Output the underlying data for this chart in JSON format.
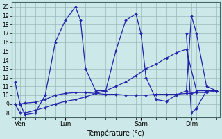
{
  "xlabel": "Température (°c)",
  "bg_color": "#cce8e8",
  "line_color": "#2222aa",
  "grid_color": "#99bbbb",
  "ylim": [
    7.5,
    20.5
  ],
  "yticks": [
    8,
    9,
    10,
    11,
    12,
    13,
    14,
    15,
    16,
    17,
    18,
    19,
    20
  ],
  "xlim": [
    -0.3,
    20.3
  ],
  "day_labels": [
    "Ven",
    "Lun",
    "Sam",
    "Dim"
  ],
  "day_positions": [
    0.5,
    5.0,
    12.5,
    17.5
  ],
  "num_xticks": 21,
  "series1_wavy": {
    "x": [
      0,
      0.5,
      1,
      2,
      3,
      4,
      5,
      6,
      6.5,
      7,
      8,
      9,
      10,
      11,
      12,
      12.5,
      13,
      14,
      15,
      16,
      17,
      17.5,
      18,
      19,
      20
    ],
    "y": [
      11.5,
      9.0,
      7.8,
      8.0,
      10.0,
      16.0,
      18.5,
      20.0,
      18.5,
      13.0,
      10.5,
      10.5,
      15.0,
      18.5,
      19.2,
      17.0,
      12.0,
      9.5,
      9.3,
      10.0,
      10.5,
      19.0,
      17.0,
      11.0,
      10.5
    ]
  },
  "series2_flat": {
    "x": [
      0,
      0.5,
      1,
      2,
      3,
      4,
      5,
      6,
      7,
      8,
      9,
      10,
      11,
      12,
      13,
      14,
      15,
      16,
      17,
      17.5,
      18,
      19,
      20
    ],
    "y": [
      9.0,
      9.0,
      9.1,
      9.2,
      9.5,
      10.0,
      10.2,
      10.3,
      10.3,
      10.2,
      10.1,
      10.1,
      10.0,
      10.0,
      10.0,
      10.1,
      10.1,
      10.1,
      10.2,
      10.2,
      10.3,
      10.3,
      10.5
    ]
  },
  "series3_rising": {
    "x": [
      0,
      0.5,
      1,
      2,
      3,
      4,
      5,
      6,
      7,
      8,
      9,
      10,
      11,
      12,
      13,
      14,
      15,
      16,
      17,
      18,
      19,
      20
    ],
    "y": [
      9.0,
      8.0,
      8.0,
      8.3,
      8.6,
      9.0,
      9.3,
      9.5,
      9.8,
      10.2,
      10.5,
      11.0,
      11.5,
      12.2,
      13.0,
      13.5,
      14.2,
      14.8,
      15.2,
      10.5,
      10.5,
      10.5
    ]
  },
  "series4_endwave": {
    "x": [
      17,
      17.5,
      18,
      19,
      20
    ],
    "y": [
      17.0,
      8.0,
      8.5,
      10.5,
      10.5
    ]
  }
}
